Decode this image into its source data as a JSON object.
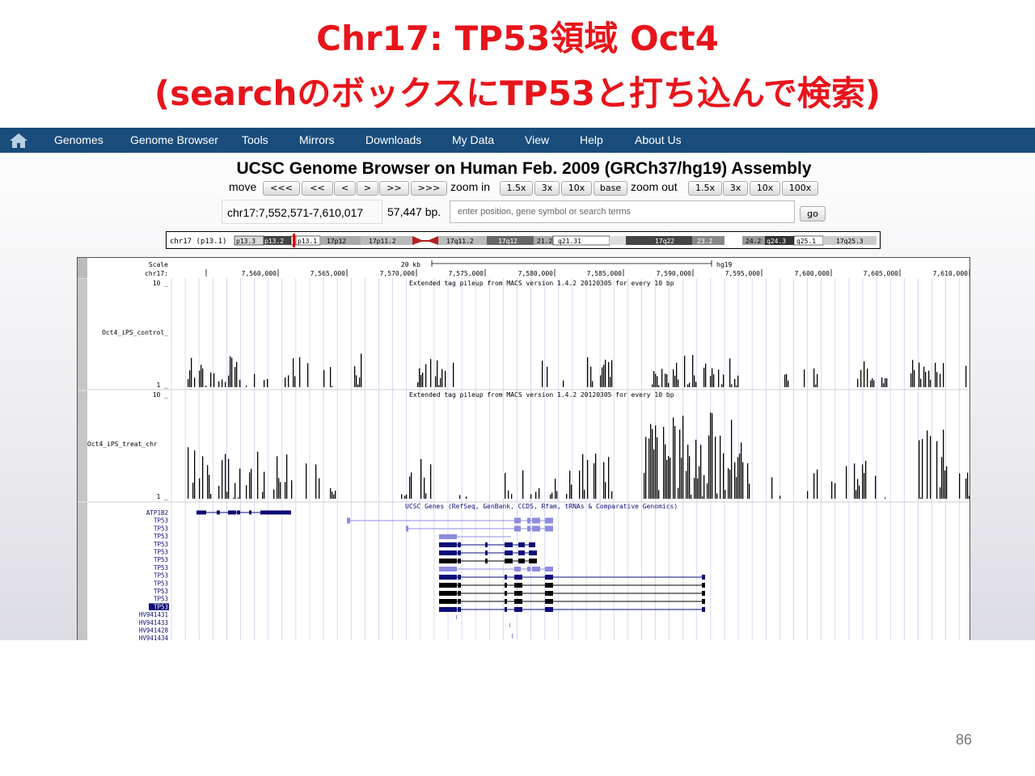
{
  "slide": {
    "title_line1": "Chr17: TP53領域 Oct4",
    "title_line2": "(searchのボックスにTP53と打ち込んで検索)",
    "page_number": "86"
  },
  "navbar": {
    "home_icon": "home-icon",
    "items": [
      "Genomes",
      "Genome Browser",
      "Tools",
      "Mirrors",
      "Downloads",
      "My Data",
      "View",
      "Help",
      "About Us"
    ]
  },
  "browser": {
    "heading": "UCSC Genome Browser on Human Feb. 2009 (GRCh37/hg19) Assembly",
    "move_label": "move",
    "move_buttons": [
      "<<<",
      "<<",
      "<",
      ">",
      ">>",
      ">>>"
    ],
    "zoom_in_label": "zoom in",
    "zoom_in_buttons": [
      "1.5x",
      "3x",
      "10x",
      "base"
    ],
    "zoom_out_label": "zoom out",
    "zoom_out_buttons": [
      "1.5x",
      "3x",
      "10x",
      "100x"
    ],
    "position": "chr17:7,552,571-7,610,017",
    "size": "57,447 bp.",
    "search_placeholder": "enter position, gene symbol or search terms",
    "go_label": "go"
  },
  "ideogram": {
    "label": "chr17 (p13.1)",
    "bands": [
      "p13.3",
      "p13.2",
      "1",
      "p13.1",
      "17p12",
      "17p11.2",
      "17q11.2",
      "17q12",
      "21.2",
      "q21.31",
      "17q22",
      "23.2",
      "24.2",
      "q24.3",
      "q25.1",
      "17q25.3"
    ]
  },
  "tracks": {
    "scale_label": "Scale",
    "chrom_label": "chr17:",
    "scale_bar_text": "20 kb",
    "assembly": "hg19",
    "ruler_ticks": [
      "7,560,000",
      "7,565,000",
      "7,570,000",
      "7,575,000",
      "7,580,000",
      "7,585,000",
      "7,590,000",
      "7,595,000",
      "7,600,000",
      "7,605,000",
      "7,610,000"
    ],
    "signal_tracks": [
      {
        "name": "Oct4_iPS_control_",
        "max_label": "10 _",
        "min_label": "1 _",
        "title": "Extended tag pileup from MACS version 1.4.2 20120305 for every 10 bp"
      },
      {
        "name": "Oct4_iPS_treat_chr",
        "max_label": "10 _",
        "min_label": "1 _",
        "title": "Extended tag pileup from MACS version 1.4.2 20120305 for every 10 bp"
      }
    ],
    "genes_title": "UCSC Genes (RefSeq, GenBank, CCDS, Rfam, tRNAs & Comparative Genomics)",
    "gene_labels": [
      "ATP1B2",
      "TP53",
      "TP53",
      "TP53",
      "TP53",
      "TP53",
      "TP53",
      "TP53",
      "TP53",
      "TP53",
      "TP53",
      "TP53",
      "TP53",
      "HV941431",
      "HV941433",
      "HV941428",
      "HV941434"
    ]
  },
  "colors": {
    "title_red": "#e8141b",
    "navbar_blue": "#1a4d7c",
    "gene_dark": "#0c0c78",
    "gene_light": "#8c8ce0"
  }
}
